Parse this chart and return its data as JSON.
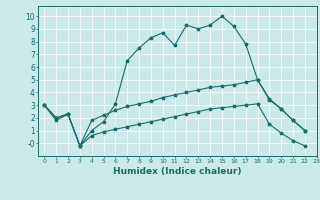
{
  "xlabel": "Humidex (Indice chaleur)",
  "bg_color": "#cce9e9",
  "line_color": "#1a6b6b",
  "grid_color": "#ffffff",
  "xlim": [
    -0.5,
    23
  ],
  "ylim": [
    -1.0,
    10.8
  ],
  "xticks": [
    0,
    1,
    2,
    3,
    4,
    5,
    6,
    7,
    8,
    9,
    10,
    11,
    12,
    13,
    14,
    15,
    16,
    17,
    18,
    19,
    20,
    21,
    22,
    23
  ],
  "yticks": [
    0,
    1,
    2,
    3,
    4,
    5,
    6,
    7,
    8,
    9,
    10
  ],
  "ytick_labels": [
    "-0",
    "1",
    "2",
    "3",
    "4",
    "5",
    "6",
    "7",
    "8",
    "9",
    "10"
  ],
  "line1_x": [
    0,
    1,
    2,
    3,
    4,
    5,
    6,
    7,
    8,
    9,
    10,
    11,
    12,
    13,
    14,
    15,
    16,
    17,
    18,
    19,
    20,
    21,
    22
  ],
  "line1_y": [
    3.0,
    1.8,
    2.3,
    -0.2,
    1.0,
    1.7,
    3.1,
    6.5,
    7.5,
    8.3,
    8.7,
    7.7,
    9.3,
    9.0,
    9.3,
    10.0,
    9.2,
    7.8,
    5.0,
    3.5,
    2.7,
    1.8,
    1.0
  ],
  "line2_x": [
    0,
    1,
    2,
    3,
    4,
    5,
    6,
    7,
    8,
    9,
    10,
    11,
    12,
    13,
    14,
    15,
    16,
    17,
    18,
    19,
    20,
    21,
    22
  ],
  "line2_y": [
    3.0,
    2.0,
    2.3,
    -0.2,
    1.8,
    2.2,
    2.6,
    2.9,
    3.1,
    3.3,
    3.6,
    3.8,
    4.0,
    4.2,
    4.4,
    4.5,
    4.6,
    4.8,
    5.0,
    3.4,
    2.7,
    1.8,
    1.0
  ],
  "line3_x": [
    0,
    1,
    2,
    3,
    4,
    5,
    6,
    7,
    8,
    9,
    10,
    11,
    12,
    13,
    14,
    15,
    16,
    17,
    18,
    19,
    20,
    21,
    22
  ],
  "line3_y": [
    3.0,
    2.0,
    2.3,
    -0.2,
    0.6,
    0.9,
    1.1,
    1.3,
    1.5,
    1.7,
    1.9,
    2.1,
    2.3,
    2.5,
    2.7,
    2.8,
    2.9,
    3.0,
    3.1,
    1.5,
    0.8,
    0.2,
    -0.2
  ]
}
